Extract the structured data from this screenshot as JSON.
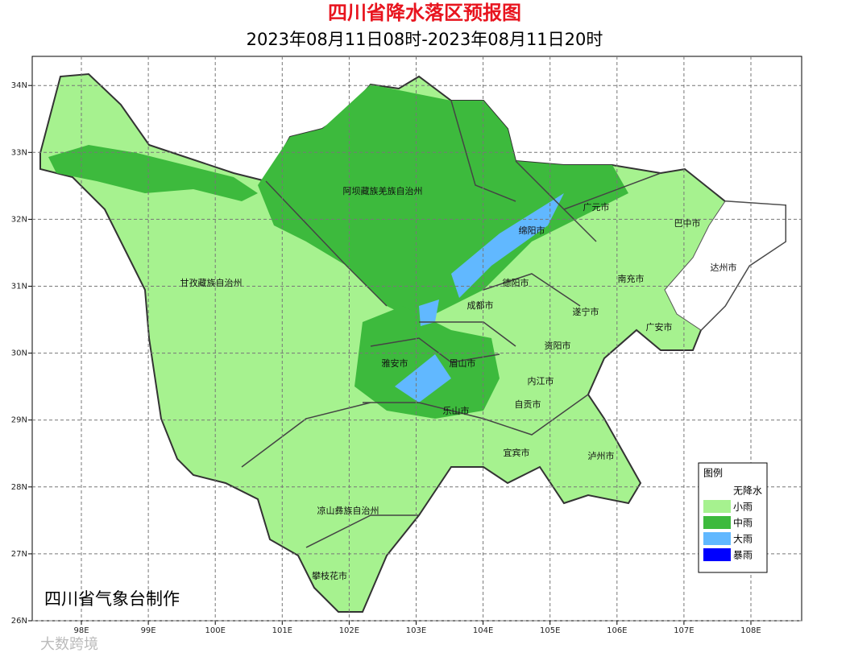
{
  "header": {
    "title": "四川省降水落区预报图",
    "subtitle": "2023年08月11日08时-2023年08月11日20时"
  },
  "map": {
    "lon_ticks": [
      {
        "value": 98,
        "label": "98E"
      },
      {
        "value": 99,
        "label": "99E"
      },
      {
        "value": 100,
        "label": "100E"
      },
      {
        "value": 101,
        "label": "101E"
      },
      {
        "value": 102,
        "label": "102E"
      },
      {
        "value": 103,
        "label": "103E"
      },
      {
        "value": 104,
        "label": "104E"
      },
      {
        "value": 105,
        "label": "105E"
      },
      {
        "value": 106,
        "label": "106E"
      },
      {
        "value": 107,
        "label": "107E"
      },
      {
        "value": 108,
        "label": "108E"
      }
    ],
    "lat_ticks": [
      {
        "value": 26,
        "label": "26N"
      },
      {
        "value": 27,
        "label": "27N"
      },
      {
        "value": 28,
        "label": "28N"
      },
      {
        "value": 29,
        "label": "29N"
      },
      {
        "value": 30,
        "label": "30N"
      },
      {
        "value": 31,
        "label": "31N"
      },
      {
        "value": 32,
        "label": "32N"
      },
      {
        "value": 33,
        "label": "33N"
      },
      {
        "value": 34,
        "label": "34N"
      }
    ],
    "regions": [
      "阿坝藏族羌族自治州",
      "甘孜藏族自治州",
      "广元市",
      "巴中市",
      "绵阳市",
      "达州市",
      "德阳市",
      "南充市",
      "成都市",
      "遂宁市",
      "广安市",
      "资阳市",
      "雅安市",
      "眉山市",
      "内江市",
      "自贡市",
      "乐山市",
      "宜宾市",
      "泸州市",
      "凉山彝族自治州",
      "攀枝花市"
    ],
    "footer": "四川省气象台制作"
  },
  "legend": {
    "title": "图例",
    "items": [
      {
        "label": "无降水",
        "color": "#ffffff"
      },
      {
        "label": "小雨",
        "color": "#a6f28f"
      },
      {
        "label": "中雨",
        "color": "#3dba3d"
      },
      {
        "label": "大雨",
        "color": "#61b8ff"
      },
      {
        "label": "暴雨",
        "color": "#0000fe"
      }
    ]
  },
  "watermark": "大数跨境"
}
